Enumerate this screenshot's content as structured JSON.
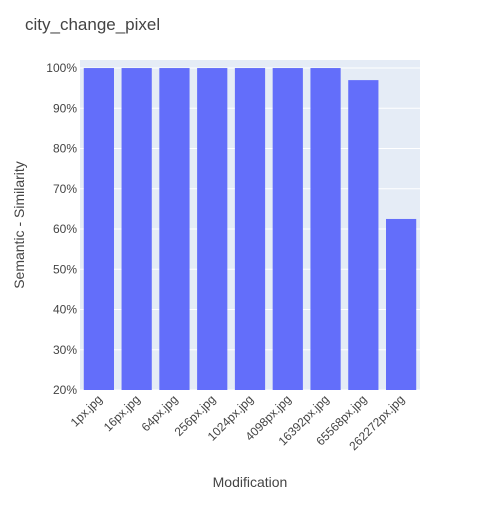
{
  "chart_data": {
    "type": "bar",
    "title": "city_change_pixel",
    "xlabel": "Modification",
    "ylabel": "Semantic - Similarity",
    "categories": [
      "1px.jpg",
      "16px.jpg",
      "64px.jpg",
      "256px.jpg",
      "1024px.jpg",
      "4098px.jpg",
      "16392px.jpg",
      "65568px.jpg",
      "262272px.jpg"
    ],
    "values": [
      1.0,
      1.0,
      1.0,
      1.0,
      1.0,
      1.0,
      1.0,
      0.97,
      0.625
    ],
    "ylim": [
      0.2,
      1.02
    ],
    "yticks": [
      0.2,
      0.3,
      0.4,
      0.5,
      0.6,
      0.7,
      0.8,
      0.9,
      1.0
    ],
    "ytick_labels": [
      "20%",
      "30%",
      "40%",
      "50%",
      "60%",
      "70%",
      "80%",
      "90%",
      "100%"
    ],
    "grid": true,
    "colors": {
      "bar": "#636efa",
      "plot_bg": "#e5ecf6",
      "grid": "#ffffff",
      "text": "#444444"
    }
  }
}
